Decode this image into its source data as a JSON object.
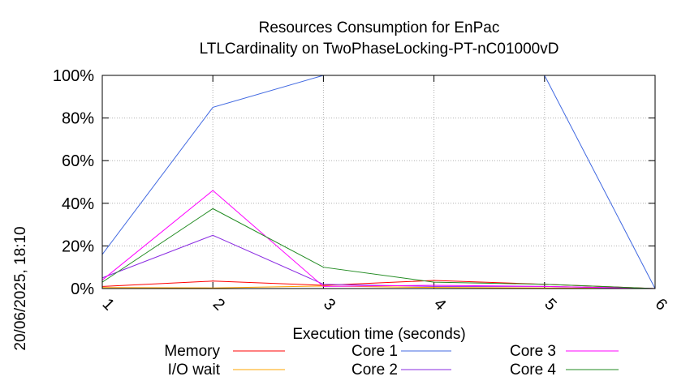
{
  "chart_data": {
    "type": "line",
    "title": "Resources Consumption for EnPac",
    "subtitle": "LTLCardinality on TwoPhaseLocking-PT-nC01000vD",
    "xlabel": "Execution time (seconds)",
    "ylabel": "",
    "side_label": "20/06/2025, 18:10",
    "x": [
      1,
      2,
      3,
      4,
      5,
      6
    ],
    "xlim": [
      1,
      6
    ],
    "ylim": [
      0,
      100
    ],
    "x_ticks": [
      "1",
      "2",
      "3",
      "4",
      "5",
      "6"
    ],
    "y_ticks": [
      "0%",
      "20%",
      "40%",
      "60%",
      "80%",
      "100%"
    ],
    "y_tick_values": [
      0,
      20,
      40,
      60,
      80,
      100
    ],
    "grid": true,
    "legend_placement": "bottom",
    "series": [
      {
        "name": "Memory",
        "color": "#ff0000",
        "values": [
          1,
          3.5,
          1.5,
          3.8,
          2,
          0
        ]
      },
      {
        "name": "I/O wait",
        "color": "#ffa500",
        "values": [
          0.5,
          0.3,
          1.2,
          0.5,
          0.3,
          0
        ]
      },
      {
        "name": "Core 1",
        "color": "#4169e1",
        "values": [
          16,
          85,
          100,
          100,
          100,
          0
        ]
      },
      {
        "name": "Core 2",
        "color": "#8a2be2",
        "values": [
          5,
          25,
          2,
          1,
          1,
          0
        ]
      },
      {
        "name": "Core 3",
        "color": "#ff00ff",
        "values": [
          4,
          46,
          1,
          1.5,
          1,
          0
        ]
      },
      {
        "name": "Core 4",
        "color": "#228b22",
        "values": [
          3,
          37.5,
          10,
          3,
          2,
          0
        ]
      }
    ]
  }
}
